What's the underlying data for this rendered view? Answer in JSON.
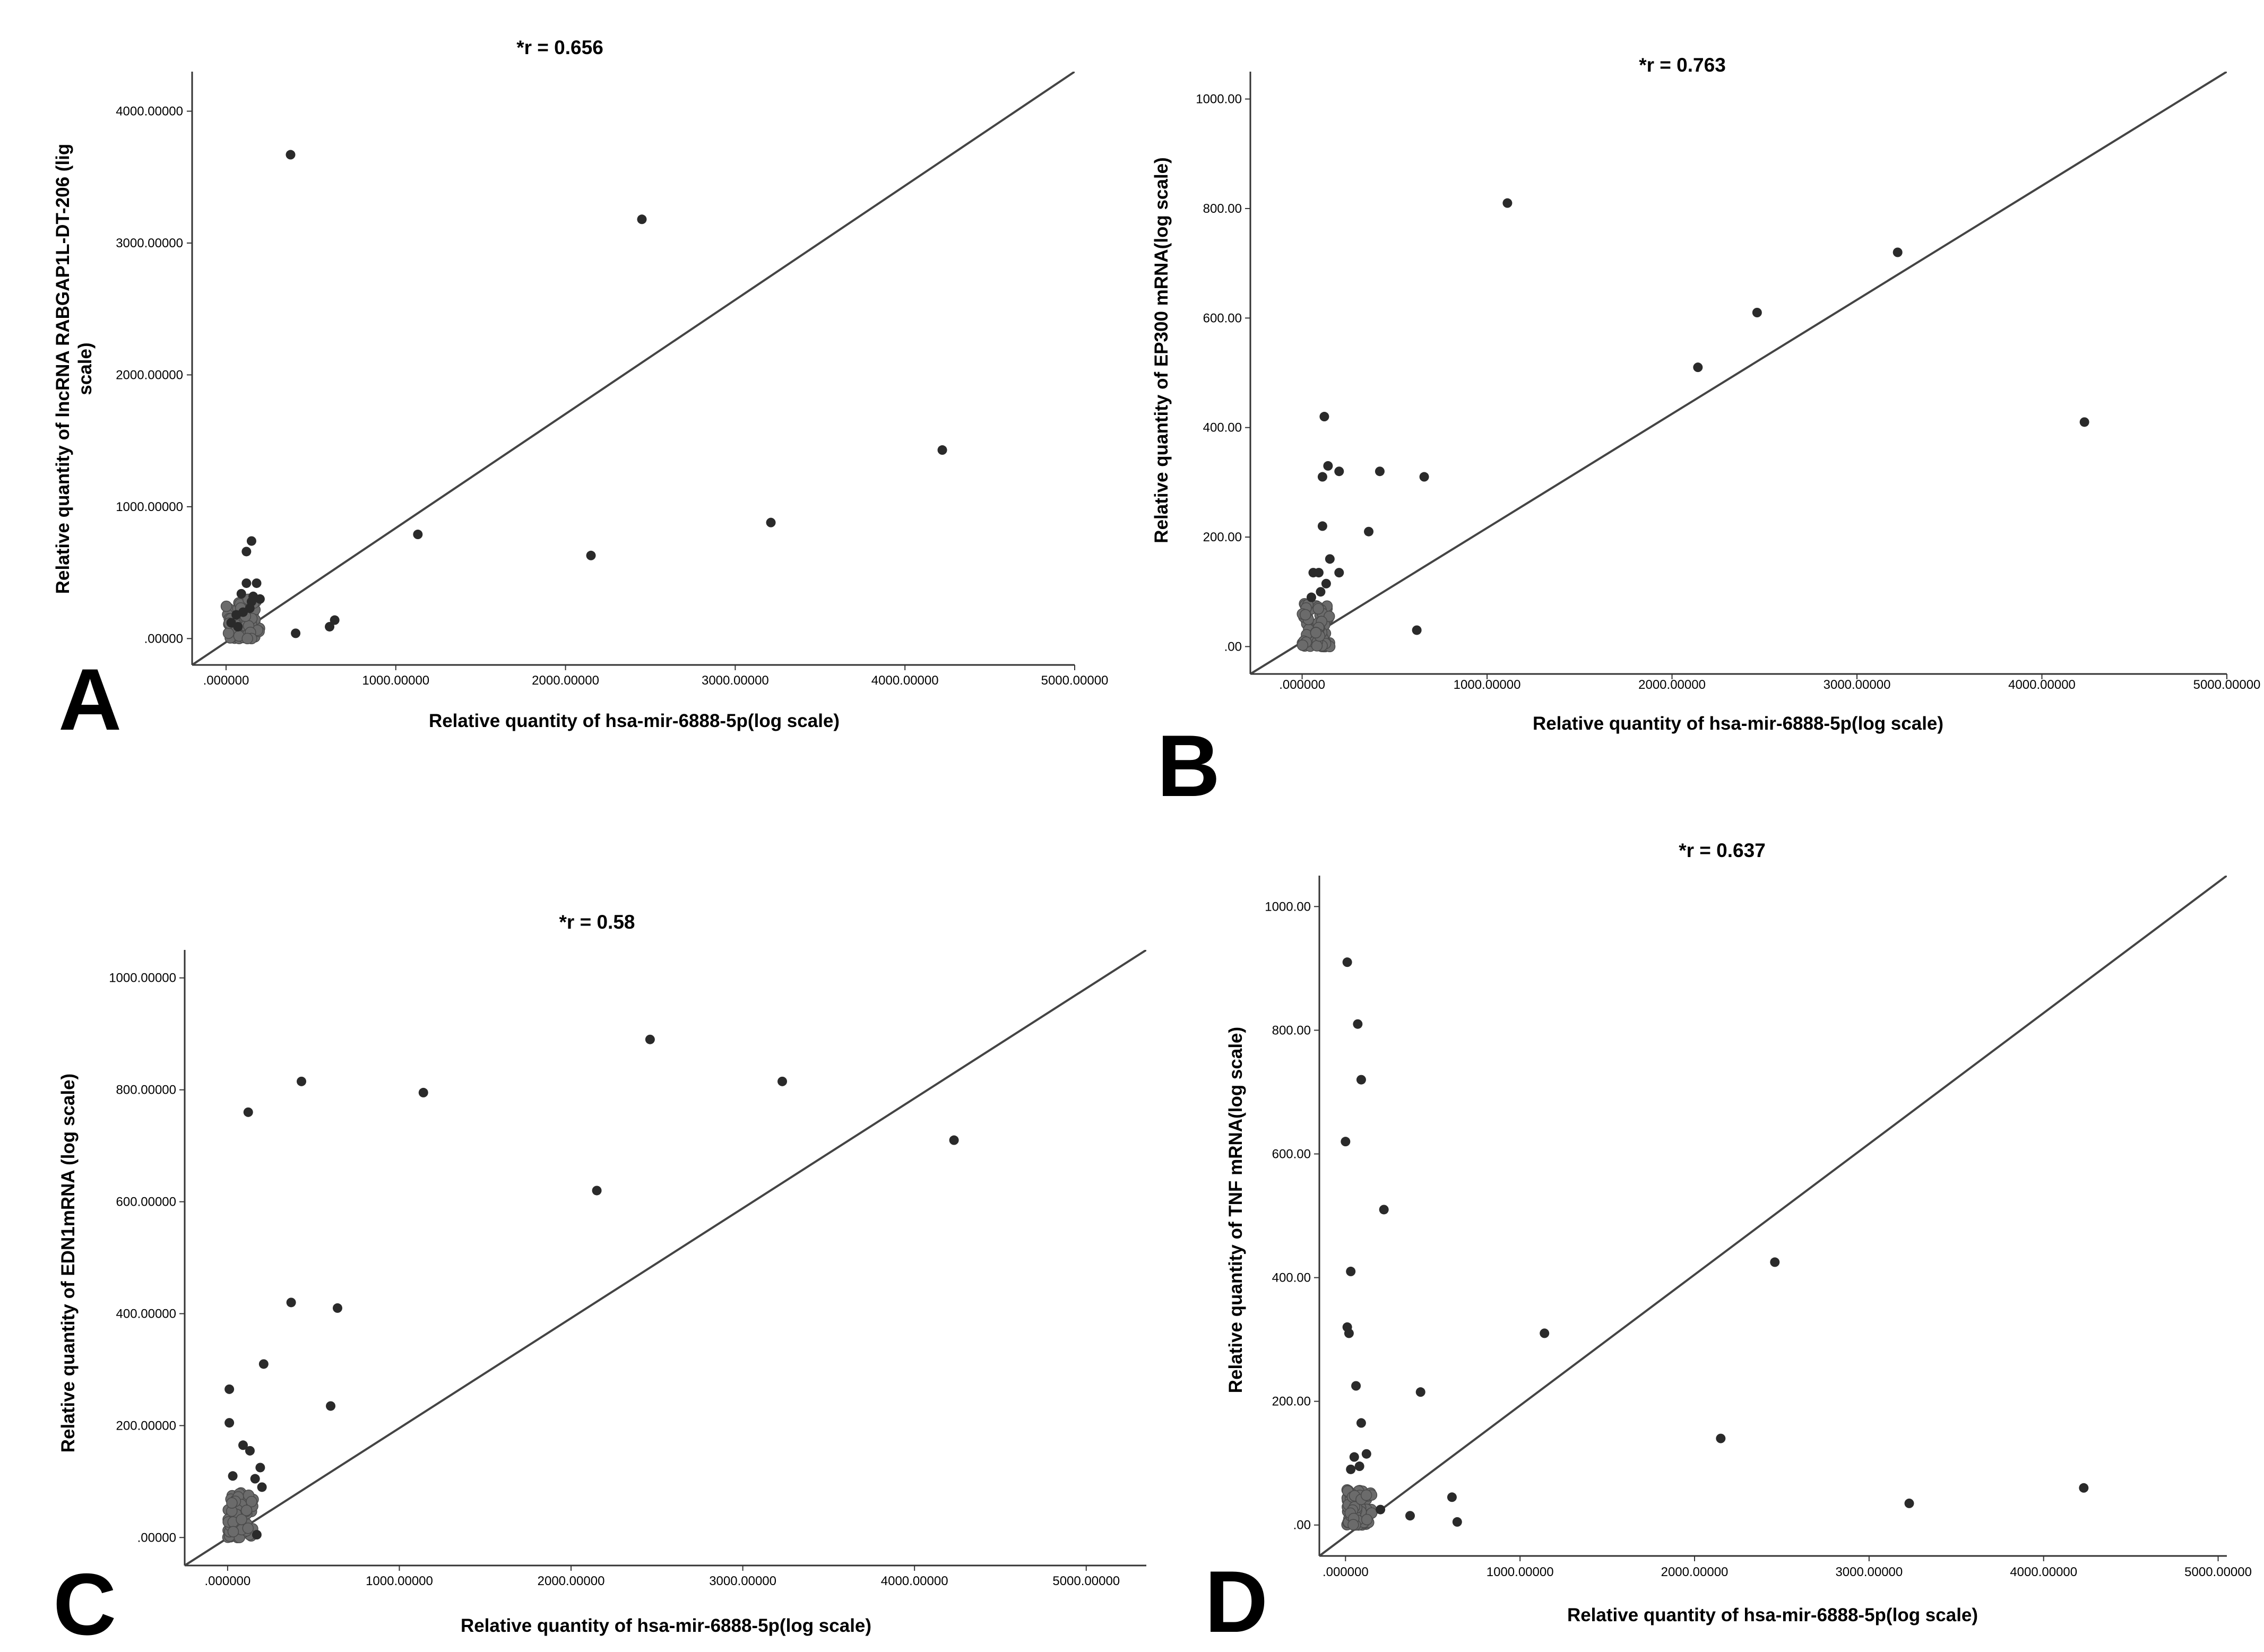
{
  "figure": {
    "description": "Four-panel scatter correlation figure"
  },
  "chart_data": [
    {
      "type": "scatter",
      "panel_label": "A",
      "title": "*r = 0.656",
      "xlabel": "Relative quantity of hsa-mir-6888-5p(log scale)",
      "ylabel_lines": [
        "Relative quantity of lncRNA RABGAP1L-DT-206 (lig",
        "scale)"
      ],
      "xlim": [
        -200,
        5000
      ],
      "ylim": [
        -200,
        4300
      ],
      "x_ticks": [
        0,
        1000,
        2000,
        3000,
        4000,
        5000
      ],
      "x_tick_labels": [
        ".000000",
        "1000.00000",
        "2000.00000",
        "3000.00000",
        "4000.00000",
        "5000.00000"
      ],
      "y_ticks": [
        0,
        1000,
        2000,
        3000,
        4000
      ],
      "y_tick_labels": [
        ".00000",
        "1000.00000",
        "2000.00000",
        "3000.00000",
        "4000.00000"
      ],
      "reference_line": [
        [
          -200,
          -200
        ],
        [
          5000,
          4300
        ]
      ],
      "cluster": {
        "x_range": [
          0,
          200
        ],
        "y_range": [
          0,
          300
        ],
        "count": 70,
        "seed": 11
      },
      "points": [
        [
          380,
          3670
        ],
        [
          2450,
          3180
        ],
        [
          4220,
          1430
        ],
        [
          3210,
          880
        ],
        [
          2150,
          630
        ],
        [
          1130,
          790
        ],
        [
          410,
          40
        ],
        [
          610,
          90
        ],
        [
          640,
          140
        ],
        [
          120,
          660
        ],
        [
          150,
          740
        ],
        [
          180,
          420
        ],
        [
          120,
          420
        ],
        [
          200,
          300
        ],
        [
          90,
          340
        ],
        [
          150,
          280
        ],
        [
          60,
          180
        ],
        [
          30,
          120
        ],
        [
          100,
          200
        ],
        [
          140,
          230
        ],
        [
          70,
          90
        ],
        [
          160,
          320
        ]
      ]
    },
    {
      "type": "scatter",
      "panel_label": "B",
      "title": "*r = 0.763",
      "xlabel": "Relative quantity of hsa-mir-6888-5p(log scale)",
      "ylabel_lines": [
        "Relative quantity of EP300 mRNA(log scale)"
      ],
      "xlim": [
        -280,
        5000
      ],
      "ylim": [
        -50,
        1050
      ],
      "x_ticks": [
        0,
        1000,
        2000,
        3000,
        4000,
        5000
      ],
      "x_tick_labels": [
        ".000000",
        "1000.00000",
        "2000.00000",
        "3000.00000",
        "4000.00000",
        "5000.00000"
      ],
      "y_ticks": [
        0,
        200,
        400,
        600,
        800,
        1000
      ],
      "y_tick_labels": [
        ".00",
        "200.00",
        "400.00",
        "600.00",
        "800.00",
        "1000.00"
      ],
      "reference_line": [
        [
          -280,
          -50
        ],
        [
          5000,
          1050
        ]
      ],
      "cluster": {
        "x_range": [
          0,
          150
        ],
        "y_range": [
          0,
          80
        ],
        "count": 70,
        "seed": 23
      },
      "points": [
        [
          1110,
          810
        ],
        [
          3220,
          720
        ],
        [
          2460,
          610
        ],
        [
          2140,
          510
        ],
        [
          4230,
          410
        ],
        [
          120,
          420
        ],
        [
          140,
          330
        ],
        [
          110,
          310
        ],
        [
          200,
          320
        ],
        [
          420,
          320
        ],
        [
          660,
          310
        ],
        [
          110,
          220
        ],
        [
          360,
          210
        ],
        [
          150,
          160
        ],
        [
          90,
          135
        ],
        [
          60,
          135
        ],
        [
          200,
          135
        ],
        [
          620,
          30
        ],
        [
          100,
          100
        ],
        [
          50,
          90
        ],
        [
          130,
          115
        ]
      ]
    },
    {
      "type": "scatter",
      "panel_label": "C",
      "title": "*r = 0.58",
      "xlabel": "Relative quantity of hsa-mir-6888-5p(log scale)",
      "ylabel_lines": [
        "Relative quantity of EDN1mRNA (log scale)"
      ],
      "xlim": [
        -250,
        5350
      ],
      "ylim": [
        -50,
        1050
      ],
      "x_ticks": [
        0,
        1000,
        2000,
        3000,
        4000,
        5000
      ],
      "x_tick_labels": [
        ".000000",
        "1000.00000",
        "2000.00000",
        "3000.00000",
        "4000.00000",
        "5000.00000"
      ],
      "y_ticks": [
        0,
        200,
        400,
        600,
        800,
        1000
      ],
      "y_tick_labels": [
        ".00000",
        "200.00000",
        "400.00000",
        "600.00000",
        "800.00000",
        "1000.00000"
      ],
      "reference_line": [
        [
          -250,
          -50
        ],
        [
          5350,
          1050
        ]
      ],
      "cluster": {
        "x_range": [
          0,
          150
        ],
        "y_range": [
          0,
          80
        ],
        "count": 80,
        "seed": 37
      },
      "points": [
        [
          2460,
          890
        ],
        [
          430,
          815
        ],
        [
          3230,
          815
        ],
        [
          1140,
          795
        ],
        [
          120,
          760
        ],
        [
          4230,
          710
        ],
        [
          2150,
          620
        ],
        [
          370,
          420
        ],
        [
          640,
          410
        ],
        [
          210,
          310
        ],
        [
          600,
          235
        ],
        [
          10,
          265
        ],
        [
          10,
          205
        ],
        [
          90,
          165
        ],
        [
          130,
          155
        ],
        [
          190,
          125
        ],
        [
          160,
          105
        ],
        [
          200,
          90
        ],
        [
          30,
          110
        ],
        [
          170,
          5
        ]
      ]
    },
    {
      "type": "scatter",
      "panel_label": "D",
      "title": "*r = 0.637",
      "xlabel": "Relative quantity of hsa-mir-6888-5p(log scale)",
      "ylabel_lines": [
        "Relative quantity of TNF mRNA(log scale)"
      ],
      "xlim": [
        -150,
        5050
      ],
      "ylim": [
        -50,
        1050
      ],
      "x_ticks": [
        0,
        1000,
        2000,
        3000,
        4000,
        5000
      ],
      "x_tick_labels": [
        ".000000",
        "1000.00000",
        "2000.00000",
        "3000.00000",
        "4000.00000",
        "5000.00000"
      ],
      "y_ticks": [
        0,
        200,
        400,
        600,
        800,
        1000
      ],
      "y_tick_labels": [
        ".00",
        "200.00",
        "400.00",
        "600.00",
        "800.00",
        "1000.00"
      ],
      "reference_line": [
        [
          -150,
          -50
        ],
        [
          5050,
          1050
        ]
      ],
      "cluster": {
        "x_range": [
          0,
          150
        ],
        "y_range": [
          0,
          60
        ],
        "count": 75,
        "seed": 53
      },
      "points": [
        [
          10,
          910
        ],
        [
          70,
          810
        ],
        [
          90,
          720
        ],
        [
          0,
          620
        ],
        [
          220,
          510
        ],
        [
          30,
          410
        ],
        [
          10,
          320
        ],
        [
          20,
          310
        ],
        [
          2460,
          425
        ],
        [
          1140,
          310
        ],
        [
          430,
          215
        ],
        [
          60,
          225
        ],
        [
          90,
          165
        ],
        [
          2150,
          140
        ],
        [
          3230,
          35
        ],
        [
          4230,
          60
        ],
        [
          610,
          45
        ],
        [
          640,
          5
        ],
        [
          370,
          15
        ],
        [
          50,
          110
        ],
        [
          120,
          115
        ],
        [
          80,
          95
        ],
        [
          30,
          90
        ],
        [
          200,
          25
        ]
      ]
    }
  ]
}
